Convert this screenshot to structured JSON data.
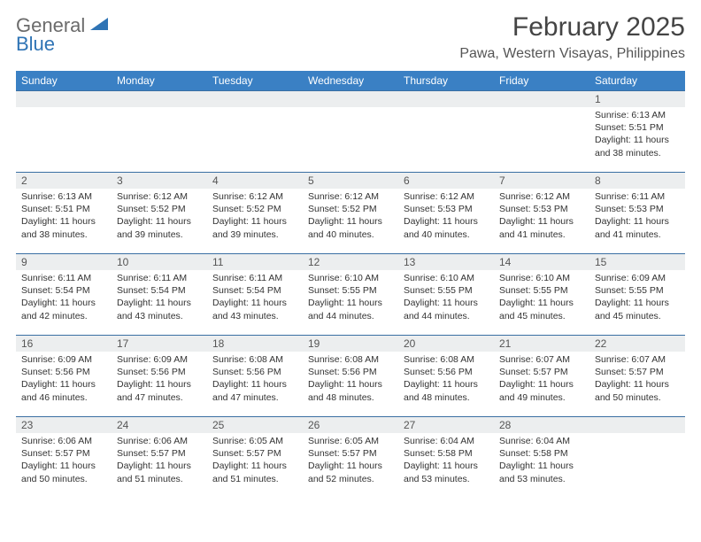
{
  "brand": {
    "word1": "General",
    "word2": "Blue"
  },
  "title": "February 2025",
  "location": "Pawa, Western Visayas, Philippines",
  "colors": {
    "header_bg": "#3a80c4",
    "header_text": "#ffffff",
    "daynum_bg": "#eceeef",
    "row_border": "#3a6fa3",
    "brand_blue": "#2f74b5"
  },
  "weekdays": [
    "Sunday",
    "Monday",
    "Tuesday",
    "Wednesday",
    "Thursday",
    "Friday",
    "Saturday"
  ],
  "weeks": [
    [
      {
        "day": "",
        "sunrise": "",
        "sunset": "",
        "daylight": ""
      },
      {
        "day": "",
        "sunrise": "",
        "sunset": "",
        "daylight": ""
      },
      {
        "day": "",
        "sunrise": "",
        "sunset": "",
        "daylight": ""
      },
      {
        "day": "",
        "sunrise": "",
        "sunset": "",
        "daylight": ""
      },
      {
        "day": "",
        "sunrise": "",
        "sunset": "",
        "daylight": ""
      },
      {
        "day": "",
        "sunrise": "",
        "sunset": "",
        "daylight": ""
      },
      {
        "day": "1",
        "sunrise": "Sunrise: 6:13 AM",
        "sunset": "Sunset: 5:51 PM",
        "daylight": "Daylight: 11 hours and 38 minutes."
      }
    ],
    [
      {
        "day": "2",
        "sunrise": "Sunrise: 6:13 AM",
        "sunset": "Sunset: 5:51 PM",
        "daylight": "Daylight: 11 hours and 38 minutes."
      },
      {
        "day": "3",
        "sunrise": "Sunrise: 6:12 AM",
        "sunset": "Sunset: 5:52 PM",
        "daylight": "Daylight: 11 hours and 39 minutes."
      },
      {
        "day": "4",
        "sunrise": "Sunrise: 6:12 AM",
        "sunset": "Sunset: 5:52 PM",
        "daylight": "Daylight: 11 hours and 39 minutes."
      },
      {
        "day": "5",
        "sunrise": "Sunrise: 6:12 AM",
        "sunset": "Sunset: 5:52 PM",
        "daylight": "Daylight: 11 hours and 40 minutes."
      },
      {
        "day": "6",
        "sunrise": "Sunrise: 6:12 AM",
        "sunset": "Sunset: 5:53 PM",
        "daylight": "Daylight: 11 hours and 40 minutes."
      },
      {
        "day": "7",
        "sunrise": "Sunrise: 6:12 AM",
        "sunset": "Sunset: 5:53 PM",
        "daylight": "Daylight: 11 hours and 41 minutes."
      },
      {
        "day": "8",
        "sunrise": "Sunrise: 6:11 AM",
        "sunset": "Sunset: 5:53 PM",
        "daylight": "Daylight: 11 hours and 41 minutes."
      }
    ],
    [
      {
        "day": "9",
        "sunrise": "Sunrise: 6:11 AM",
        "sunset": "Sunset: 5:54 PM",
        "daylight": "Daylight: 11 hours and 42 minutes."
      },
      {
        "day": "10",
        "sunrise": "Sunrise: 6:11 AM",
        "sunset": "Sunset: 5:54 PM",
        "daylight": "Daylight: 11 hours and 43 minutes."
      },
      {
        "day": "11",
        "sunrise": "Sunrise: 6:11 AM",
        "sunset": "Sunset: 5:54 PM",
        "daylight": "Daylight: 11 hours and 43 minutes."
      },
      {
        "day": "12",
        "sunrise": "Sunrise: 6:10 AM",
        "sunset": "Sunset: 5:55 PM",
        "daylight": "Daylight: 11 hours and 44 minutes."
      },
      {
        "day": "13",
        "sunrise": "Sunrise: 6:10 AM",
        "sunset": "Sunset: 5:55 PM",
        "daylight": "Daylight: 11 hours and 44 minutes."
      },
      {
        "day": "14",
        "sunrise": "Sunrise: 6:10 AM",
        "sunset": "Sunset: 5:55 PM",
        "daylight": "Daylight: 11 hours and 45 minutes."
      },
      {
        "day": "15",
        "sunrise": "Sunrise: 6:09 AM",
        "sunset": "Sunset: 5:55 PM",
        "daylight": "Daylight: 11 hours and 45 minutes."
      }
    ],
    [
      {
        "day": "16",
        "sunrise": "Sunrise: 6:09 AM",
        "sunset": "Sunset: 5:56 PM",
        "daylight": "Daylight: 11 hours and 46 minutes."
      },
      {
        "day": "17",
        "sunrise": "Sunrise: 6:09 AM",
        "sunset": "Sunset: 5:56 PM",
        "daylight": "Daylight: 11 hours and 47 minutes."
      },
      {
        "day": "18",
        "sunrise": "Sunrise: 6:08 AM",
        "sunset": "Sunset: 5:56 PM",
        "daylight": "Daylight: 11 hours and 47 minutes."
      },
      {
        "day": "19",
        "sunrise": "Sunrise: 6:08 AM",
        "sunset": "Sunset: 5:56 PM",
        "daylight": "Daylight: 11 hours and 48 minutes."
      },
      {
        "day": "20",
        "sunrise": "Sunrise: 6:08 AM",
        "sunset": "Sunset: 5:56 PM",
        "daylight": "Daylight: 11 hours and 48 minutes."
      },
      {
        "day": "21",
        "sunrise": "Sunrise: 6:07 AM",
        "sunset": "Sunset: 5:57 PM",
        "daylight": "Daylight: 11 hours and 49 minutes."
      },
      {
        "day": "22",
        "sunrise": "Sunrise: 6:07 AM",
        "sunset": "Sunset: 5:57 PM",
        "daylight": "Daylight: 11 hours and 50 minutes."
      }
    ],
    [
      {
        "day": "23",
        "sunrise": "Sunrise: 6:06 AM",
        "sunset": "Sunset: 5:57 PM",
        "daylight": "Daylight: 11 hours and 50 minutes."
      },
      {
        "day": "24",
        "sunrise": "Sunrise: 6:06 AM",
        "sunset": "Sunset: 5:57 PM",
        "daylight": "Daylight: 11 hours and 51 minutes."
      },
      {
        "day": "25",
        "sunrise": "Sunrise: 6:05 AM",
        "sunset": "Sunset: 5:57 PM",
        "daylight": "Daylight: 11 hours and 51 minutes."
      },
      {
        "day": "26",
        "sunrise": "Sunrise: 6:05 AM",
        "sunset": "Sunset: 5:57 PM",
        "daylight": "Daylight: 11 hours and 52 minutes."
      },
      {
        "day": "27",
        "sunrise": "Sunrise: 6:04 AM",
        "sunset": "Sunset: 5:58 PM",
        "daylight": "Daylight: 11 hours and 53 minutes."
      },
      {
        "day": "28",
        "sunrise": "Sunrise: 6:04 AM",
        "sunset": "Sunset: 5:58 PM",
        "daylight": "Daylight: 11 hours and 53 minutes."
      },
      {
        "day": "",
        "sunrise": "",
        "sunset": "",
        "daylight": ""
      }
    ]
  ]
}
